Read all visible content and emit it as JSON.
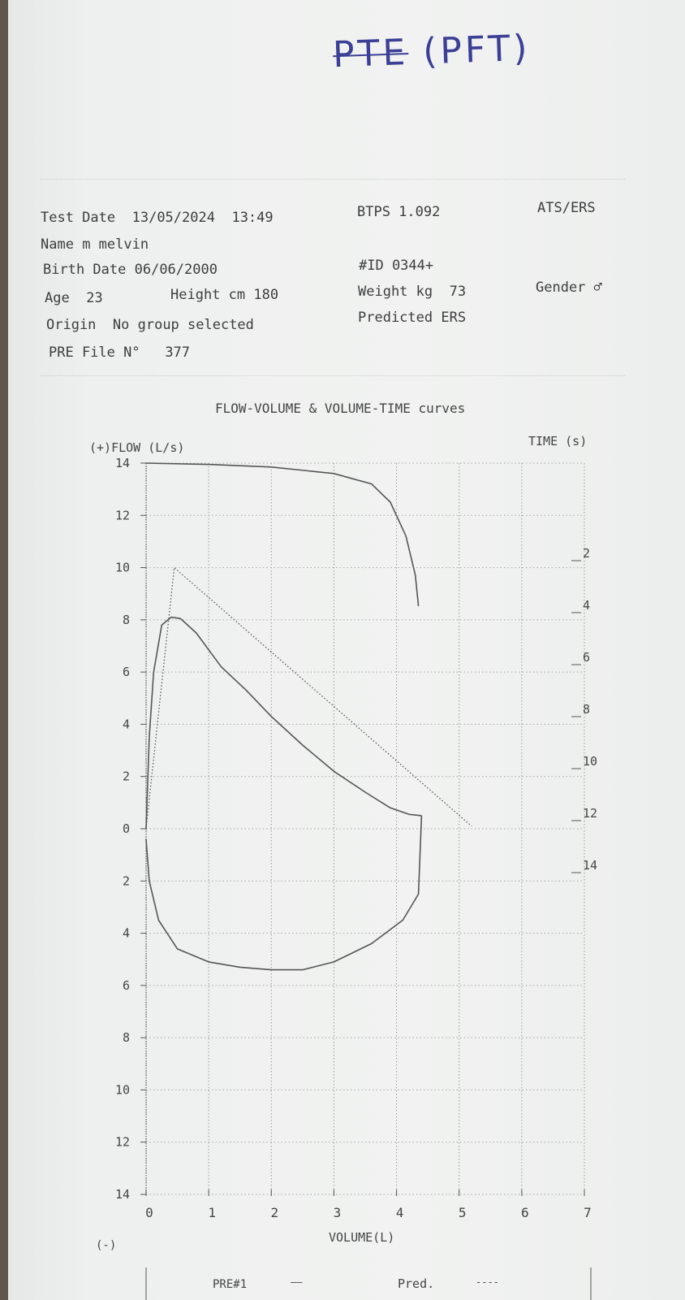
{
  "handwritten_note": {
    "struck": "PTE",
    "text": "(PFT)"
  },
  "header": {
    "test_date_label": "Test Date",
    "test_date": "13/05/2024",
    "test_time": "13:49",
    "btps": "BTPS 1.092",
    "standard": "ATS/ERS",
    "name_label": "Name",
    "name": "m melvin",
    "birth_date_label": "Birth Date",
    "birth_date": "06/06/2000",
    "id": "#ID 0344+",
    "age_label": "Age",
    "age": "23",
    "height_label": "Height cm",
    "height": "180",
    "weight_label": "Weight kg",
    "weight": "73",
    "gender_label": "Gender",
    "gender": "♂",
    "origin_label": "Origin",
    "origin": "No group selected",
    "predicted": "Predicted ERS",
    "file_label": "PRE File N°",
    "file_number": "377"
  },
  "chart_data": {
    "type": "line",
    "title": "FLOW-VOLUME & VOLUME-TIME curves",
    "ylabel": "(+)FLOW (L/s)",
    "y_negative_label": "(-)",
    "y2label": "TIME (s)",
    "xlabel": "VOLUME(L)",
    "xlim": [
      0,
      7
    ],
    "ylim": [
      -14,
      14
    ],
    "x_ticks": [
      "0",
      "1",
      "2",
      "3",
      "4",
      "5",
      "6",
      "7"
    ],
    "y_ticks": [
      "14",
      "12",
      "10",
      "8",
      "6",
      "4",
      "2",
      "0",
      "2",
      "4",
      "6",
      "8",
      "10",
      "12",
      "14"
    ],
    "y_tick_values": [
      -14,
      -12,
      -10,
      -8,
      -6,
      -4,
      -2,
      0,
      2,
      4,
      6,
      8,
      10,
      12,
      14
    ],
    "time_ticks": [
      "2",
      "4",
      "6",
      "8",
      "10",
      "12",
      "14"
    ],
    "grid": true,
    "series": [
      {
        "name": "PRE#1",
        "style": "solid",
        "points": [
          [
            0,
            0
          ],
          [
            0.05,
            3.5
          ],
          [
            0.12,
            6
          ],
          [
            0.25,
            7.8
          ],
          [
            0.4,
            8.1
          ],
          [
            0.55,
            8.05
          ],
          [
            0.8,
            7.5
          ],
          [
            1.2,
            6.2
          ],
          [
            1.6,
            5.3
          ],
          [
            2.0,
            4.3
          ],
          [
            2.5,
            3.2
          ],
          [
            3.0,
            2.2
          ],
          [
            3.5,
            1.4
          ],
          [
            3.9,
            0.8
          ],
          [
            4.2,
            0.55
          ],
          [
            4.4,
            0.5
          ]
        ]
      },
      {
        "style": "solid",
        "points": [
          [
            4.4,
            0.5
          ],
          [
            4.35,
            -2.5
          ],
          [
            4.1,
            -3.5
          ],
          [
            3.6,
            -4.4
          ],
          [
            3.0,
            -5.1
          ],
          [
            2.5,
            -5.4
          ],
          [
            2.0,
            -5.4
          ],
          [
            1.5,
            -5.3
          ],
          [
            1.0,
            -5.1
          ],
          [
            0.5,
            -4.6
          ],
          [
            0.2,
            -3.5
          ],
          [
            0.05,
            -2
          ],
          [
            0,
            -0.4
          ]
        ]
      },
      {
        "name": "Pred.",
        "style": "dotted",
        "points": [
          [
            0,
            0
          ],
          [
            0.45,
            10
          ],
          [
            5.2,
            0.1
          ]
        ]
      }
    ],
    "volume_time_curve": {
      "style": "solid",
      "points_volume_L_time_s": [
        [
          0,
          0
        ],
        [
          1,
          0.05
        ],
        [
          2,
          0.15
        ],
        [
          3,
          0.4
        ],
        [
          3.6,
          0.8
        ],
        [
          3.9,
          1.5
        ],
        [
          4.15,
          2.8
        ],
        [
          4.3,
          4.3
        ],
        [
          4.35,
          5.5
        ]
      ]
    }
  },
  "footer": {
    "pre_label": "PRE#1",
    "pre_line": "——",
    "pred_label": "Pred.",
    "pred_line": "----"
  }
}
